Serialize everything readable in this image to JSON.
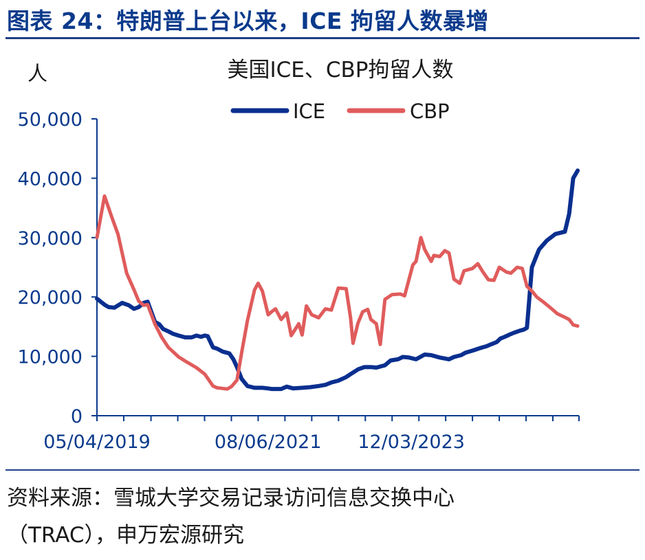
{
  "figure": {
    "title": "图表 24：特朗普上台以来，ICE 拘留人数暴增",
    "source_line1": "资料来源：雪城大学交易记录访问信息交换中心",
    "source_line2": "（TRAC），申万宏源研究"
  },
  "colors": {
    "title": "#0a3a8c",
    "axis": "#0a3a8c",
    "ice": "#0a2f8f",
    "cbp": "#e05c5c"
  },
  "chart_data": {
    "type": "line",
    "title": "美国ICE、CBP拘留人数",
    "ylabel": "人",
    "xlabel": "",
    "ylim": [
      0,
      50000
    ],
    "yticks": [
      0,
      10000,
      20000,
      30000,
      40000,
      50000
    ],
    "ytick_labels": [
      "0",
      "10,000",
      "20,000",
      "30,000",
      "40,000",
      "50,000"
    ],
    "xlim": [
      "2019-05-04",
      "2025-04-01"
    ],
    "xtick_labels": [
      {
        "date": "2019-05-04",
        "label": "05/04/2019"
      },
      {
        "date": "2021-06-08",
        "label": "08/06/2021"
      },
      {
        "date": "2023-03-12",
        "label": "12/03/2023"
      }
    ],
    "minor_ticks": [
      "2019-05-04",
      "2019-09-01",
      "2020-01-01",
      "2020-04-30",
      "2020-08-28",
      "2020-12-26",
      "2021-04-25",
      "2021-08-23",
      "2021-12-21",
      "2022-04-20",
      "2022-08-18",
      "2022-12-16",
      "2023-04-15",
      "2023-08-13",
      "2023-12-11",
      "2024-04-09",
      "2024-08-07",
      "2024-12-05",
      "2025-04-01"
    ],
    "legend_position": "top-center",
    "grid": false,
    "series": [
      {
        "name": "ICE",
        "x": [
          "2019-05-04",
          "2019-06-07",
          "2019-06-25",
          "2019-07-21",
          "2019-08-25",
          "2019-09-24",
          "2019-10-17",
          "2019-11-07",
          "2019-11-29",
          "2019-12-17",
          "2020-01-19",
          "2020-02-07",
          "2020-02-25",
          "2020-03-19",
          "2020-04-09",
          "2020-05-04",
          "2020-06-02",
          "2020-07-01",
          "2020-07-22",
          "2020-08-12",
          "2020-08-29",
          "2020-09-11",
          "2020-10-05",
          "2020-10-23",
          "2020-11-17",
          "2020-12-17",
          "2021-01-04",
          "2021-01-20",
          "2021-02-10",
          "2021-03-08",
          "2021-04-09",
          "2021-05-14",
          "2021-06-09",
          "2021-06-24",
          "2021-07-12",
          "2021-08-06",
          "2021-08-31",
          "2021-09-29",
          "2021-11-08",
          "2021-12-13",
          "2022-01-21",
          "2022-02-20",
          "2022-03-19",
          "2022-04-19",
          "2022-05-24",
          "2022-06-13",
          "2022-07-16",
          "2022-08-14",
          "2022-09-12",
          "2022-10-06",
          "2022-11-14",
          "2022-12-09",
          "2023-01-11",
          "2023-02-02",
          "2023-03-01",
          "2023-04-02",
          "2023-05-11",
          "2023-06-09",
          "2023-07-17",
          "2023-08-28",
          "2023-09-19",
          "2023-10-21",
          "2023-11-09",
          "2023-12-14",
          "2024-01-15",
          "2024-02-12",
          "2024-03-02",
          "2024-03-28",
          "2024-04-14",
          "2024-05-04",
          "2024-05-27",
          "2024-06-16",
          "2024-07-09",
          "2024-07-28",
          "2024-08-11",
          "2024-09-02",
          "2024-10-04",
          "2024-11-08",
          "2024-12-16",
          "2025-01-28",
          "2025-02-16",
          "2025-03-06",
          "2025-03-26"
        ],
        "values": [
          19700,
          18700,
          18300,
          18200,
          19000,
          18600,
          18000,
          18300,
          19000,
          19200,
          15800,
          15400,
          14600,
          14200,
          13800,
          13500,
          13200,
          13200,
          13500,
          13300,
          13500,
          13400,
          11500,
          11300,
          10800,
          10500,
          9500,
          8200,
          6200,
          5000,
          4700,
          4700,
          4600,
          4500,
          4500,
          4500,
          4900,
          4600,
          4700,
          4800,
          5000,
          5200,
          5600,
          5900,
          6500,
          7000,
          7800,
          8200,
          8200,
          8100,
          8500,
          9300,
          9500,
          9900,
          9800,
          9500,
          10300,
          10200,
          9800,
          9500,
          9900,
          10200,
          10600,
          11000,
          11400,
          11700,
          12000,
          12400,
          13000,
          13300,
          13700,
          14000,
          14300,
          14500,
          14800,
          25000,
          28000,
          29500,
          30600,
          31000,
          34000,
          40000,
          41300
        ]
      },
      {
        "name": "CBP",
        "x": [
          "2019-05-04",
          "2019-06-07",
          "2019-07-09",
          "2019-08-06",
          "2019-09-14",
          "2019-10-17",
          "2019-11-07",
          "2019-11-29",
          "2019-12-17",
          "2020-01-19",
          "2020-02-18",
          "2020-03-19",
          "2020-05-04",
          "2020-06-11",
          "2020-07-22",
          "2020-08-29",
          "2020-10-05",
          "2020-10-23",
          "2020-11-17",
          "2020-12-08",
          "2020-12-26",
          "2021-01-20",
          "2021-02-10",
          "2021-03-08",
          "2021-04-09",
          "2021-04-25",
          "2021-05-14",
          "2021-06-09",
          "2021-06-24",
          "2021-07-12",
          "2021-08-06",
          "2021-08-31",
          "2021-09-20",
          "2021-10-24",
          "2021-11-08",
          "2021-11-27",
          "2021-12-21",
          "2022-01-21",
          "2022-02-20",
          "2022-03-19",
          "2022-04-19",
          "2022-05-24",
          "2022-06-13",
          "2022-06-24",
          "2022-07-16",
          "2022-08-06",
          "2022-08-29",
          "2022-09-12",
          "2022-10-06",
          "2022-10-24",
          "2022-11-14",
          "2022-12-16",
          "2023-01-22",
          "2023-02-10",
          "2023-03-19",
          "2023-04-02",
          "2023-04-24",
          "2023-05-11",
          "2023-06-09",
          "2023-06-21",
          "2023-07-17",
          "2023-08-09",
          "2023-08-28",
          "2023-09-19",
          "2023-10-15",
          "2023-11-03",
          "2023-12-11",
          "2024-01-04",
          "2024-01-27",
          "2024-02-20",
          "2024-03-16",
          "2024-04-09",
          "2024-05-11",
          "2024-05-31",
          "2024-06-28",
          "2024-07-21",
          "2024-08-11",
          "2024-09-02",
          "2024-09-24",
          "2024-10-22",
          "2024-11-30",
          "2024-12-24",
          "2025-01-21",
          "2025-02-16",
          "2025-03-06",
          "2025-03-26"
        ],
        "values": [
          30000,
          37000,
          33500,
          30600,
          24000,
          21200,
          19300,
          18600,
          18700,
          15400,
          13200,
          11500,
          9900,
          9000,
          8100,
          7000,
          5000,
          4700,
          4600,
          4500,
          4900,
          6000,
          10600,
          16000,
          21200,
          22300,
          21000,
          17000,
          17500,
          18000,
          16200,
          17300,
          13500,
          15500,
          13600,
          18500,
          17000,
          16500,
          18000,
          17800,
          21500,
          21400,
          16500,
          12200,
          15600,
          17500,
          17900,
          16200,
          15500,
          12000,
          19600,
          20400,
          20500,
          20200,
          25400,
          26000,
          30000,
          28000,
          26000,
          27000,
          26800,
          27800,
          27400,
          23000,
          22300,
          24400,
          24800,
          25600,
          24200,
          22900,
          22800,
          25000,
          24200,
          24000,
          25000,
          24800,
          21800,
          21000,
          20000,
          19200,
          18000,
          17200,
          16700,
          16200,
          15300,
          15100
        ]
      }
    ]
  }
}
